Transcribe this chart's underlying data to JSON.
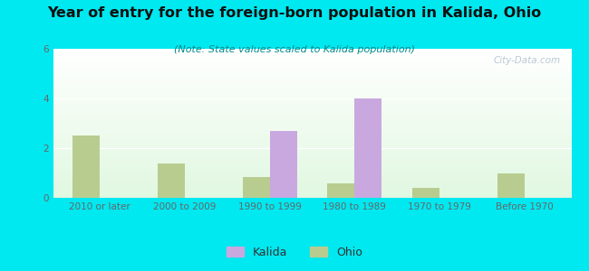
{
  "title": "Year of entry for the foreign-born population in Kalida, Ohio",
  "subtitle": "(Note: State values scaled to Kalida population)",
  "categories": [
    "2010 or later",
    "2000 to 2009",
    "1990 to 1999",
    "1980 to 1989",
    "1970 to 1979",
    "Before 1970"
  ],
  "kalida_values": [
    0,
    0,
    2.7,
    4.0,
    0,
    0
  ],
  "ohio_values": [
    2.5,
    1.4,
    0.85,
    0.6,
    0.4,
    1.0
  ],
  "kalida_color": "#c9a8e0",
  "ohio_color": "#b8cc90",
  "background_color": "#00e8f0",
  "ylim": [
    0,
    6
  ],
  "yticks": [
    0,
    2,
    4,
    6
  ],
  "bar_width": 0.32,
  "title_fontsize": 11.5,
  "subtitle_fontsize": 8,
  "tick_fontsize": 7.5,
  "legend_fontsize": 9
}
